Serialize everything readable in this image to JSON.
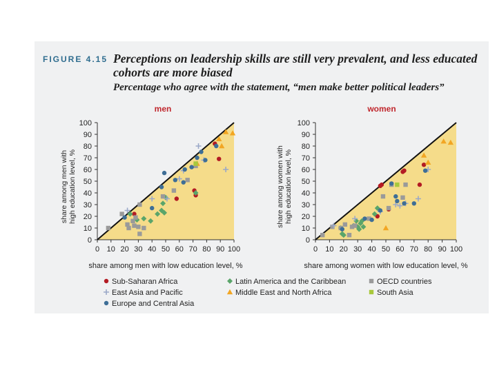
{
  "figure": {
    "label": "FIGURE 4.15",
    "title": "Perceptions on leadership skills are still very prevalent, and less educated cohorts are more biased",
    "subtitle": "Percentage who agree with the statement, “men make better political leaders”"
  },
  "colors": {
    "panel_bg": "#f0f1f2",
    "plot_fill": "#f5dc8a",
    "diagonal": "#111111",
    "Sub-Saharan Africa": "#b31b23",
    "Latin America and the Caribbean": "#5aa56a",
    "OECD countries": "#9a9a9a",
    "East Asia and Pacific": "#9aa8c8",
    "Middle East and North Africa": "#f2a623",
    "South Asia": "#a8c83c",
    "Europe and Central Asia": "#3e6e96"
  },
  "legend": [
    {
      "name": "Sub-Saharan Africa",
      "marker": "circle"
    },
    {
      "name": "Latin America and the Caribbean",
      "marker": "diamond"
    },
    {
      "name": "OECD countries",
      "marker": "square"
    },
    {
      "name": "East Asia and Pacific",
      "marker": "plus"
    },
    {
      "name": "Middle East and North Africa",
      "marker": "triangle"
    },
    {
      "name": "South Asia",
      "marker": "square"
    },
    {
      "name": "Europe and Central Asia",
      "marker": "circle"
    }
  ],
  "chart_data": [
    {
      "type": "scatter",
      "title": "men",
      "xlabel": "share among men with low education level, %",
      "ylabel": "share among men with high education level, %",
      "xlim": [
        0,
        100
      ],
      "ylim": [
        0,
        100
      ],
      "xticks": [
        "0",
        "10",
        "20",
        "30",
        "40",
        "50",
        "60",
        "70",
        "80",
        "90",
        "100"
      ],
      "yticks": [
        "0",
        "10",
        "20",
        "30",
        "40",
        "50",
        "60",
        "70",
        "80",
        "90",
        "100"
      ],
      "reference_line": "y = x",
      "series": [
        {
          "name": "Sub-Saharan Africa",
          "points": [
            [
              27,
              22
            ],
            [
              58,
              35
            ],
            [
              71,
              42
            ],
            [
              72,
              38
            ],
            [
              86,
              82
            ],
            [
              89,
              69
            ]
          ]
        },
        {
          "name": "Latin America and the Caribbean",
          "points": [
            [
              24,
              22
            ],
            [
              29,
              17
            ],
            [
              34,
              18
            ],
            [
              39,
              16
            ],
            [
              44,
              22
            ],
            [
              47,
              25
            ],
            [
              49,
              23
            ],
            [
              48,
              31
            ],
            [
              50,
              36
            ],
            [
              72,
              40
            ]
          ]
        },
        {
          "name": "OECD countries",
          "points": [
            [
              8,
              10
            ],
            [
              18,
              22
            ],
            [
              22,
              13
            ],
            [
              23,
              10
            ],
            [
              26,
              16
            ],
            [
              27,
              12
            ],
            [
              28,
              19
            ],
            [
              30,
              11
            ],
            [
              31,
              5
            ],
            [
              31,
              30
            ],
            [
              34,
              10
            ],
            [
              48,
              37
            ],
            [
              56,
              42
            ],
            [
              66,
              51
            ],
            [
              72,
              63
            ]
          ]
        },
        {
          "name": "East Asia and Pacific",
          "points": [
            [
              22,
              25
            ],
            [
              40,
              35
            ],
            [
              51,
              35
            ],
            [
              60,
              52
            ],
            [
              63,
              59
            ],
            [
              74,
              80
            ],
            [
              78,
              68
            ],
            [
              94,
              60
            ]
          ]
        },
        {
          "name": "Middle East and North Africa",
          "points": [
            [
              73,
              65
            ],
            [
              89,
              86
            ],
            [
              91,
              80
            ],
            [
              94,
              92
            ],
            [
              99,
              91
            ]
          ]
        },
        {
          "name": "South Asia",
          "points": [
            [
              72,
              65
            ]
          ]
        },
        {
          "name": "Europe and Central Asia",
          "points": [
            [
              20,
              19
            ],
            [
              40,
              27
            ],
            [
              47,
              45
            ],
            [
              49,
              57
            ],
            [
              57,
              51
            ],
            [
              63,
              49
            ],
            [
              64,
              60
            ],
            [
              69,
              62
            ],
            [
              73,
              70
            ],
            [
              76,
              75
            ],
            [
              79,
              68
            ],
            [
              87,
              80
            ]
          ]
        }
      ]
    },
    {
      "type": "scatter",
      "title": "women",
      "xlabel": "share among women with low education level, %",
      "ylabel": "share among women with high education level, %",
      "xlim": [
        0,
        100
      ],
      "ylim": [
        0,
        100
      ],
      "xticks": [
        "0",
        "10",
        "20",
        "30",
        "40",
        "50",
        "60",
        "70",
        "80",
        "90",
        "100"
      ],
      "yticks": [
        "0",
        "10",
        "20",
        "30",
        "40",
        "50",
        "60",
        "70",
        "80",
        "90",
        "100"
      ],
      "reference_line": "y = x",
      "series": [
        {
          "name": "Sub-Saharan Africa",
          "points": [
            [
              44,
              20
            ],
            [
              46,
              46
            ],
            [
              47,
              47
            ],
            [
              52,
              26
            ],
            [
              62,
              58
            ],
            [
              63,
              59
            ],
            [
              74,
              47
            ],
            [
              77,
              64
            ]
          ]
        },
        {
          "name": "Latin America and the Caribbean",
          "points": [
            [
              18,
              10
            ],
            [
              19,
              5
            ],
            [
              20,
              4
            ],
            [
              27,
              12
            ],
            [
              29,
              16
            ],
            [
              30,
              11
            ],
            [
              31,
              9
            ],
            [
              32,
              14
            ],
            [
              33,
              16
            ],
            [
              34,
              11
            ],
            [
              42,
              22
            ],
            [
              44,
              27
            ]
          ]
        },
        {
          "name": "OECD countries",
          "points": [
            [
              5,
              4
            ],
            [
              12,
              11
            ],
            [
              18,
              10
            ],
            [
              21,
              13
            ],
            [
              24,
              4
            ],
            [
              26,
              11
            ],
            [
              28,
              12
            ],
            [
              38,
              18
            ],
            [
              48,
              37
            ],
            [
              52,
              27
            ],
            [
              54,
              47
            ],
            [
              62,
              36
            ],
            [
              64,
              47
            ]
          ]
        },
        {
          "name": "East Asia and Pacific",
          "points": [
            [
              13,
              12
            ],
            [
              28,
              18
            ],
            [
              46,
              24
            ],
            [
              57,
              30
            ],
            [
              60,
              29
            ],
            [
              64,
              31
            ],
            [
              73,
              35
            ],
            [
              80,
              60
            ]
          ]
        },
        {
          "name": "Middle East and North Africa",
          "points": [
            [
              50,
              10
            ],
            [
              77,
              72
            ],
            [
              80,
              66
            ],
            [
              91,
              84
            ],
            [
              96,
              83
            ]
          ]
        },
        {
          "name": "South Asia",
          "points": [
            [
              58,
              47
            ]
          ]
        },
        {
          "name": "Europe and Central Asia",
          "points": [
            [
              19,
              9
            ],
            [
              35,
              18
            ],
            [
              40,
              17
            ],
            [
              46,
              25
            ],
            [
              54,
              48
            ],
            [
              57,
              37
            ],
            [
              58,
              33
            ],
            [
              63,
              31
            ],
            [
              70,
              31
            ],
            [
              78,
              59
            ]
          ]
        }
      ]
    }
  ]
}
